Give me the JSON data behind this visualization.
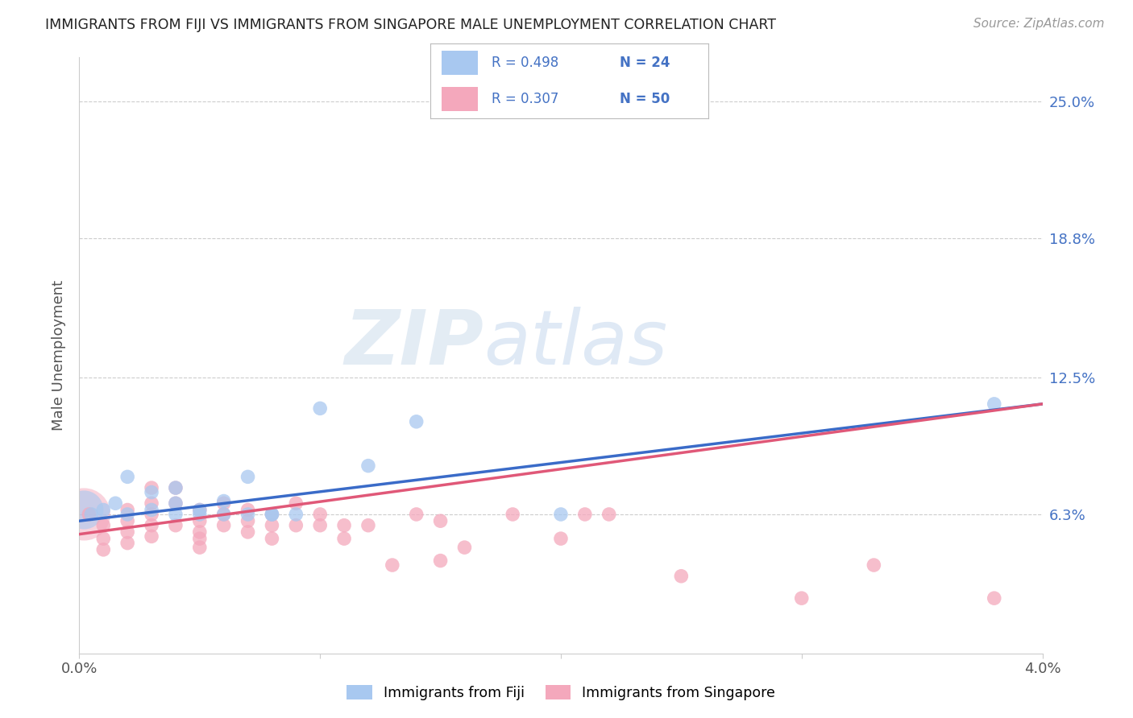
{
  "title": "IMMIGRANTS FROM FIJI VS IMMIGRANTS FROM SINGAPORE MALE UNEMPLOYMENT CORRELATION CHART",
  "source": "Source: ZipAtlas.com",
  "ylabel": "Male Unemployment",
  "ytick_labels": [
    "25.0%",
    "18.8%",
    "12.5%",
    "6.3%"
  ],
  "ytick_values": [
    0.25,
    0.188,
    0.125,
    0.063
  ],
  "xlim": [
    0.0,
    0.04
  ],
  "ylim": [
    0.0,
    0.27
  ],
  "fiji_color": "#A8C8F0",
  "fiji_color_edge": "#A8C8F0",
  "singapore_color": "#F4A8BC",
  "singapore_color_edge": "#F4A8BC",
  "fiji_R": "0.498",
  "fiji_N": "24",
  "singapore_R": "0.307",
  "singapore_N": "50",
  "fiji_scatter_x": [
    0.0005,
    0.001,
    0.0015,
    0.002,
    0.002,
    0.003,
    0.003,
    0.004,
    0.004,
    0.004,
    0.005,
    0.005,
    0.006,
    0.006,
    0.007,
    0.007,
    0.008,
    0.008,
    0.009,
    0.01,
    0.012,
    0.014,
    0.02,
    0.038
  ],
  "fiji_scatter_y": [
    0.063,
    0.065,
    0.068,
    0.08,
    0.063,
    0.073,
    0.065,
    0.075,
    0.068,
    0.063,
    0.063,
    0.065,
    0.069,
    0.063,
    0.08,
    0.063,
    0.063,
    0.063,
    0.063,
    0.111,
    0.085,
    0.105,
    0.063,
    0.113
  ],
  "singapore_scatter_x": [
    0.0004,
    0.001,
    0.001,
    0.001,
    0.002,
    0.002,
    0.002,
    0.002,
    0.003,
    0.003,
    0.003,
    0.003,
    0.003,
    0.004,
    0.004,
    0.004,
    0.005,
    0.005,
    0.005,
    0.005,
    0.005,
    0.006,
    0.006,
    0.006,
    0.007,
    0.007,
    0.007,
    0.008,
    0.008,
    0.008,
    0.009,
    0.009,
    0.01,
    0.01,
    0.011,
    0.011,
    0.012,
    0.013,
    0.014,
    0.015,
    0.015,
    0.016,
    0.018,
    0.02,
    0.021,
    0.022,
    0.025,
    0.03,
    0.033,
    0.038
  ],
  "singapore_scatter_y": [
    0.063,
    0.058,
    0.052,
    0.047,
    0.065,
    0.06,
    0.055,
    0.05,
    0.075,
    0.068,
    0.063,
    0.058,
    0.053,
    0.075,
    0.068,
    0.058,
    0.065,
    0.06,
    0.055,
    0.052,
    0.048,
    0.068,
    0.063,
    0.058,
    0.065,
    0.06,
    0.055,
    0.063,
    0.058,
    0.052,
    0.068,
    0.058,
    0.063,
    0.058,
    0.058,
    0.052,
    0.058,
    0.04,
    0.063,
    0.06,
    0.042,
    0.048,
    0.063,
    0.052,
    0.063,
    0.063,
    0.035,
    0.025,
    0.04,
    0.025
  ],
  "fiji_line_x0": 0.0,
  "fiji_line_y0": 0.06,
  "fiji_line_x1": 0.04,
  "fiji_line_y1": 0.113,
  "singapore_line_x0": 0.0,
  "singapore_line_y0": 0.054,
  "singapore_line_x1": 0.04,
  "singapore_line_y1": 0.113,
  "fiji_line_color": "#3A6BC8",
  "singapore_line_color": "#E05878",
  "watermark_zip": "ZIP",
  "watermark_atlas": "atlas",
  "background_color": "#FFFFFF",
  "grid_color": "#CCCCCC",
  "legend_fiji_text_R": "R = 0.498",
  "legend_fiji_text_N": "N = 24",
  "legend_sing_text_R": "R = 0.307",
  "legend_sing_text_N": "N = 50",
  "legend_text_color": "#4472C4",
  "bottom_legend_fiji": "Immigrants from Fiji",
  "bottom_legend_sing": "Immigrants from Singapore"
}
